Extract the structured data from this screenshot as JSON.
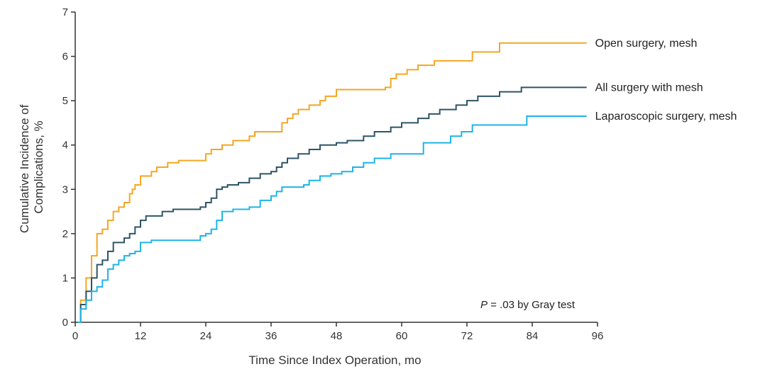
{
  "chart_data": {
    "type": "line",
    "step": true,
    "xlabel": "Time Since Index Operation, mo",
    "ylabel_lines": [
      "Cumulative Incidence of",
      "Complications, %"
    ],
    "xlim": [
      0,
      96
    ],
    "ylim": [
      0,
      7
    ],
    "xticks": [
      0,
      12,
      24,
      36,
      48,
      60,
      72,
      84,
      96
    ],
    "yticks": [
      0,
      1,
      2,
      3,
      4,
      5,
      6,
      7
    ],
    "grid": false,
    "annotation": {
      "italic": "P",
      "text": " = .03 by Gray test"
    },
    "series": [
      {
        "name": "Open surgery, mesh",
        "color": "#f5a623",
        "points": [
          [
            0.5,
            0
          ],
          [
            1,
            0.5
          ],
          [
            2,
            1.0
          ],
          [
            3,
            1.5
          ],
          [
            4,
            2.0
          ],
          [
            5,
            2.1
          ],
          [
            6,
            2.3
          ],
          [
            7,
            2.5
          ],
          [
            8,
            2.6
          ],
          [
            9,
            2.7
          ],
          [
            10,
            2.9
          ],
          [
            10.5,
            3.0
          ],
          [
            11,
            3.1
          ],
          [
            12,
            3.3
          ],
          [
            14,
            3.4
          ],
          [
            15,
            3.5
          ],
          [
            17,
            3.6
          ],
          [
            19,
            3.65
          ],
          [
            24,
            3.8
          ],
          [
            25,
            3.9
          ],
          [
            27,
            4.0
          ],
          [
            29,
            4.1
          ],
          [
            32,
            4.2
          ],
          [
            33,
            4.3
          ],
          [
            38,
            4.5
          ],
          [
            39,
            4.6
          ],
          [
            40,
            4.7
          ],
          [
            41,
            4.8
          ],
          [
            43,
            4.9
          ],
          [
            45,
            5.0
          ],
          [
            46,
            5.1
          ],
          [
            48,
            5.25
          ],
          [
            57,
            5.3
          ],
          [
            58,
            5.5
          ],
          [
            59,
            5.6
          ],
          [
            61,
            5.7
          ],
          [
            63,
            5.8
          ],
          [
            66,
            5.9
          ],
          [
            73,
            6.1
          ],
          [
            78,
            6.3
          ],
          [
            94,
            6.3
          ]
        ]
      },
      {
        "name": "All surgery with mesh",
        "color": "#2e5565",
        "points": [
          [
            0.5,
            0
          ],
          [
            1,
            0.4
          ],
          [
            2,
            0.7
          ],
          [
            3,
            1.0
          ],
          [
            4,
            1.3
          ],
          [
            5,
            1.4
          ],
          [
            6,
            1.6
          ],
          [
            7,
            1.8
          ],
          [
            9,
            1.9
          ],
          [
            10,
            2.0
          ],
          [
            11,
            2.15
          ],
          [
            12,
            2.3
          ],
          [
            13,
            2.4
          ],
          [
            16,
            2.5
          ],
          [
            18,
            2.55
          ],
          [
            23,
            2.6
          ],
          [
            24,
            2.7
          ],
          [
            25,
            2.8
          ],
          [
            26,
            3.0
          ],
          [
            27,
            3.05
          ],
          [
            28,
            3.1
          ],
          [
            30,
            3.15
          ],
          [
            32,
            3.25
          ],
          [
            34,
            3.35
          ],
          [
            36,
            3.4
          ],
          [
            37,
            3.5
          ],
          [
            38,
            3.6
          ],
          [
            39,
            3.7
          ],
          [
            41,
            3.8
          ],
          [
            43,
            3.9
          ],
          [
            45,
            4.0
          ],
          [
            48,
            4.05
          ],
          [
            50,
            4.1
          ],
          [
            53,
            4.2
          ],
          [
            55,
            4.3
          ],
          [
            58,
            4.4
          ],
          [
            60,
            4.5
          ],
          [
            63,
            4.6
          ],
          [
            65,
            4.7
          ],
          [
            67,
            4.8
          ],
          [
            70,
            4.9
          ],
          [
            72,
            5.0
          ],
          [
            74,
            5.1
          ],
          [
            78,
            5.2
          ],
          [
            82,
            5.3
          ],
          [
            94,
            5.3
          ]
        ]
      },
      {
        "name": "Laparoscopic surgery, mesh",
        "color": "#1eb4e8",
        "points": [
          [
            0.5,
            0
          ],
          [
            1,
            0.3
          ],
          [
            2,
            0.5
          ],
          [
            3,
            0.7
          ],
          [
            4,
            0.8
          ],
          [
            5,
            0.95
          ],
          [
            6,
            1.2
          ],
          [
            7,
            1.3
          ],
          [
            8,
            1.4
          ],
          [
            9,
            1.5
          ],
          [
            10,
            1.55
          ],
          [
            11,
            1.6
          ],
          [
            12,
            1.8
          ],
          [
            14,
            1.85
          ],
          [
            23,
            1.95
          ],
          [
            24,
            2.0
          ],
          [
            25,
            2.1
          ],
          [
            26,
            2.3
          ],
          [
            27,
            2.5
          ],
          [
            29,
            2.55
          ],
          [
            32,
            2.6
          ],
          [
            34,
            2.75
          ],
          [
            36,
            2.85
          ],
          [
            37,
            2.95
          ],
          [
            38,
            3.05
          ],
          [
            42,
            3.1
          ],
          [
            43,
            3.2
          ],
          [
            45,
            3.3
          ],
          [
            47,
            3.35
          ],
          [
            49,
            3.4
          ],
          [
            51,
            3.5
          ],
          [
            53,
            3.6
          ],
          [
            55,
            3.7
          ],
          [
            58,
            3.8
          ],
          [
            64,
            4.05
          ],
          [
            69,
            4.2
          ],
          [
            71,
            4.3
          ],
          [
            73,
            4.45
          ],
          [
            83,
            4.65
          ],
          [
            94,
            4.65
          ]
        ]
      }
    ]
  }
}
